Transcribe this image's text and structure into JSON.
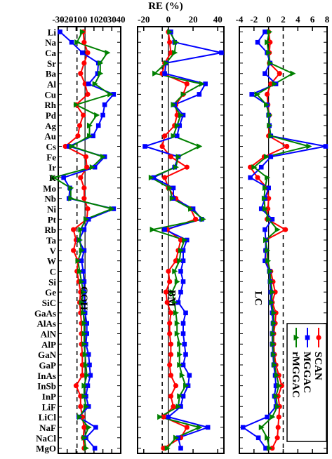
{
  "chart_data": {
    "type": "line",
    "orientation": "vertical-categories",
    "title": "RE (%)",
    "categories": [
      "Li",
      "Na",
      "Ca",
      "Sr",
      "Ba",
      "Al",
      "Cu",
      "Rh",
      "Pd",
      "Ag",
      "Au",
      "Cs",
      "Fe",
      "Ir",
      "K",
      "Mo",
      "Nb",
      "Ni",
      "Pt",
      "Rb",
      "Ta",
      "V",
      "W",
      "C",
      "Si",
      "Ge",
      "SiC",
      "GaAs",
      "AlAs",
      "AlN",
      "AlP",
      "GaN",
      "GaP",
      "InAs",
      "InSb",
      "InP",
      "LiF",
      "LiCl",
      "NaF",
      "NaCl",
      "MgO"
    ],
    "legend": {
      "position": "bottom-right of LC panel",
      "entries": [
        {
          "label": "SCAN",
          "color": "#ff0000",
          "marker": "circle"
        },
        {
          "label": "MGGAC",
          "color": "#0000ff",
          "marker": "square"
        },
        {
          "label": "rMGGAC",
          "color": "#008000",
          "marker": "triangle"
        }
      ]
    },
    "panels": [
      {
        "label": "COH",
        "xlim": [
          -30,
          40
        ],
        "ticks": [
          -30,
          -20,
          -10,
          0,
          10,
          20,
          30,
          40
        ],
        "tick_labels": [
          "-30",
          "-20",
          "-10",
          "0",
          "10",
          "20",
          "30",
          "40"
        ],
        "reference_line": -9,
        "series": [
          {
            "name": "SCAN",
            "values": [
              -2,
              -1,
              3,
              -1,
              -5,
              0,
              3,
              -10,
              -2,
              -6,
              -8,
              -22,
              1,
              2,
              -5,
              -1,
              -1,
              3,
              2,
              -13,
              -10,
              -13,
              -8,
              -9,
              -7,
              -5,
              -6,
              -5,
              -4,
              -4,
              -4,
              -3,
              -3,
              -3,
              -10,
              -5,
              -5,
              -3,
              -1,
              -2,
              -1
            ]
          },
          {
            "name": "MGGAC",
            "values": [
              -28,
              -15,
              -3,
              15,
              14,
              4,
              32,
              22,
              20,
              15,
              9,
              -18,
              22,
              11,
              -24,
              -17,
              -18,
              32,
              4,
              -1,
              -7,
              -1,
              -4,
              -2,
              -1,
              -1,
              -1,
              0,
              2,
              2,
              1,
              4,
              5,
              6,
              3,
              1,
              4,
              -7,
              12,
              1,
              11
            ]
          },
          {
            "name": "rMGGAC",
            "values": [
              -3,
              -9,
              25,
              17,
              17,
              11,
              28,
              -10,
              13,
              5,
              5,
              -15,
              20,
              8,
              -35,
              -16,
              -16,
              30,
              1,
              -5,
              -6,
              -4,
              -8,
              -6,
              -4,
              -2,
              -4,
              -2,
              -1,
              -1,
              -1,
              0,
              1,
              2,
              -1,
              -1,
              1,
              -6,
              4,
              -1,
              1
            ]
          }
        ]
      },
      {
        "label": "BM",
        "xlim": [
          -25,
          45
        ],
        "ticks": [
          -20,
          0,
          20,
          40
        ],
        "tick_labels": [
          "-20",
          "0",
          "20",
          "40"
        ],
        "reference_line": -5,
        "series": [
          {
            "name": "SCAN",
            "values": [
              0,
              1,
              2,
              -3,
              -5,
              15,
              12,
              6,
              7,
              5,
              -3,
              -5,
              2,
              15,
              -3,
              0,
              6,
              18,
              22,
              -1,
              10,
              8,
              6,
              0,
              1,
              -2,
              -1,
              2,
              1,
              1,
              2,
              2,
              1,
              2,
              6,
              2,
              4,
              -4,
              15,
              10,
              -4
            ]
          },
          {
            "name": "MGGAC",
            "values": [
              2,
              5,
              43,
              -2,
              -3,
              30,
              25,
              5,
              12,
              9,
              7,
              -19,
              8,
              5,
              -12,
              4,
              4,
              20,
              27,
              -3,
              15,
              12,
              12,
              10,
              12,
              10,
              8,
              14,
              12,
              12,
              13,
              14,
              12,
              17,
              16,
              12,
              10,
              0,
              32,
              8,
              10
            ]
          },
          {
            "name": "rMGGAC",
            "values": [
              1,
              6,
              5,
              -2,
              -11,
              27,
              12,
              4,
              10,
              7,
              4,
              25,
              8,
              6,
              -14,
              1,
              3,
              18,
              28,
              -13,
              13,
              10,
              9,
              5,
              7,
              3,
              5,
              6,
              7,
              7,
              9,
              9,
              9,
              11,
              14,
              9,
              8,
              -7,
              25,
              6,
              -1
            ]
          }
        ]
      },
      {
        "label": "LC",
        "xlim": [
          -4,
          8
        ],
        "ticks": [
          -4,
          -2,
          0,
          2,
          4,
          6,
          8
        ],
        "tick_labels": [
          "-4",
          "-2",
          "0",
          "2",
          "4",
          "6",
          "8"
        ],
        "reference_line": 2,
        "series": [
          {
            "name": "SCAN",
            "values": [
              0,
              0.2,
              0.1,
              0.1,
              1.5,
              0.3,
              -0.2,
              -0.1,
              0.1,
              0.1,
              0,
              2.5,
              -0.6,
              -2.5,
              -1.5,
              -0.2,
              0,
              -0.1,
              -0.2,
              2.3,
              -0.4,
              -0.4,
              -0.4,
              0.3,
              0.6,
              0.9,
              0.5,
              1.0,
              0.9,
              0.7,
              0.7,
              0.8,
              1.0,
              1.4,
              1.8,
              1.3,
              1.5,
              1.4,
              1.3,
              1.2,
              0.5
            ]
          },
          {
            "name": "MGGAC",
            "values": [
              -0.5,
              -1.5,
              -0.2,
              0.2,
              -0.5,
              1.0,
              -2.3,
              -0.2,
              0,
              0.1,
              0.3,
              7.8,
              0.3,
              -1.0,
              -2.5,
              0,
              -0.5,
              -1.0,
              0.5,
              -0.5,
              -0.4,
              -0.4,
              -0.5,
              0.1,
              0.2,
              0.3,
              0.3,
              0.5,
              0.6,
              0.5,
              0.5,
              0.6,
              0.7,
              0.9,
              1.0,
              0.8,
              1.0,
              -0.2,
              -3.5,
              -1.4,
              -0.4
            ]
          },
          {
            "name": "rMGGAC",
            "values": [
              0.1,
              -0.2,
              0,
              0.2,
              3.3,
              0.8,
              -1.6,
              -0.3,
              0.1,
              0.1,
              0.3,
              5.5,
              -0.3,
              -2.0,
              -0.2,
              -0.5,
              -0.6,
              -0.5,
              0,
              1.2,
              -0.4,
              -0.2,
              -0.1,
              0.2,
              0.3,
              0.5,
              0.4,
              0.7,
              0.7,
              0.6,
              0.6,
              0.7,
              0.8,
              1.1,
              1.4,
              1.0,
              1.2,
              0.5,
              -1.0,
              -0.2,
              0.1
            ]
          }
        ]
      }
    ]
  }
}
